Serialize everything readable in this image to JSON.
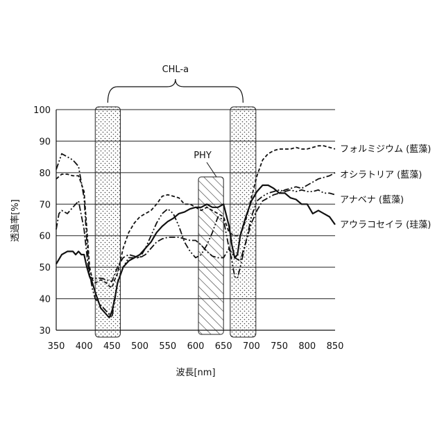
{
  "chart_data": {
    "type": "line",
    "title": "",
    "xlabel": "波長[nm]",
    "ylabel": "透過率[%]",
    "xlim": [
      350,
      850
    ],
    "ylim": [
      30,
      100
    ],
    "xticks": [
      350,
      400,
      450,
      500,
      550,
      600,
      650,
      700,
      750,
      800,
      850
    ],
    "yticks": [
      30,
      40,
      50,
      60,
      70,
      80,
      90,
      100
    ],
    "grid": "horizontal",
    "legend": "right",
    "annotations": {
      "chl_label": "CHL-a",
      "phy_label": "PHY",
      "chl_bands": [
        [
          420,
          465
        ],
        [
          662,
          708
        ]
      ],
      "phy_band": [
        605,
        650
      ]
    },
    "series": [
      {
        "name": "フォルミジウム (藍藻)",
        "style": "dashed",
        "x": [
          350,
          360,
          370,
          380,
          390,
          400,
          405,
          410,
          415,
          420,
          430,
          440,
          445,
          450,
          455,
          460,
          470,
          480,
          490,
          500,
          510,
          520,
          530,
          540,
          550,
          560,
          570,
          580,
          590,
          600,
          610,
          620,
          630,
          640,
          650,
          660,
          670,
          680,
          690,
          700,
          710,
          720,
          730,
          740,
          750,
          760,
          770,
          780,
          790,
          800,
          810,
          820,
          830,
          840,
          850
        ],
        "y": [
          78,
          79.5,
          79.5,
          79,
          79,
          74,
          62,
          50,
          46,
          45,
          46,
          45,
          44,
          43.5,
          46,
          48,
          56,
          61,
          64,
          66,
          67,
          68,
          70,
          72.5,
          73,
          72.5,
          72,
          70,
          70,
          69,
          68,
          69,
          68,
          67,
          66,
          61,
          60,
          60,
          65,
          72,
          79,
          84,
          86,
          87,
          87.5,
          87.5,
          87.5,
          88,
          87.5,
          87.5,
          88,
          88.5,
          88.5,
          88,
          87.5
        ]
      },
      {
        "name": "オシラトリア (藍藻)",
        "style": "dash-dot",
        "x": [
          350,
          355,
          360,
          370,
          380,
          390,
          400,
          405,
          410,
          415,
          420,
          430,
          440,
          450,
          460,
          470,
          480,
          490,
          500,
          510,
          520,
          530,
          540,
          550,
          560,
          570,
          580,
          590,
          600,
          610,
          620,
          630,
          640,
          650,
          660,
          670,
          680,
          690,
          700,
          710,
          720,
          730,
          740,
          750,
          760,
          770,
          780,
          790,
          800,
          810,
          820,
          830,
          840,
          850
        ],
        "y": [
          62,
          67,
          68,
          67,
          69,
          71,
          62,
          54,
          47,
          46.5,
          46.5,
          46.5,
          46,
          45.5,
          50,
          53,
          54,
          53.5,
          53,
          54,
          56,
          58,
          59,
          59.5,
          59.5,
          59.5,
          59,
          58.5,
          58.5,
          57,
          55,
          53.5,
          53,
          53,
          56,
          53,
          52,
          58,
          64,
          68,
          71,
          72,
          73,
          73.5,
          74.5,
          75,
          75.5,
          75,
          76,
          77,
          78,
          78.5,
          79,
          80
        ]
      },
      {
        "name": "アナベナ (藍藻)",
        "style": "dash-dot-dot",
        "x": [
          350,
          360,
          370,
          380,
          390,
          400,
          405,
          410,
          415,
          420,
          430,
          440,
          445,
          450,
          460,
          470,
          480,
          490,
          500,
          510,
          520,
          530,
          540,
          550,
          560,
          570,
          580,
          590,
          600,
          610,
          620,
          630,
          640,
          650,
          660,
          665,
          670,
          675,
          680,
          690,
          700,
          710,
          720,
          730,
          740,
          750,
          760,
          770,
          780,
          790,
          800,
          810,
          820,
          830,
          840,
          850
        ],
        "y": [
          81,
          86,
          85,
          84,
          82,
          72,
          58,
          48,
          43,
          40,
          38,
          36,
          35,
          34,
          45,
          50,
          53,
          53,
          53,
          56,
          60,
          64,
          67,
          68.5,
          67,
          63,
          58,
          55,
          53,
          54,
          57,
          61,
          66,
          65,
          56,
          52,
          47,
          46.5,
          50,
          58,
          66,
          71,
          72.5,
          73.5,
          74,
          74.5,
          74,
          74.5,
          74,
          74.5,
          74,
          74,
          74.5,
          73.5,
          73.5,
          73
        ]
      },
      {
        "name": "アウラコセイラ (珪藻)",
        "style": "solid",
        "x": [
          350,
          360,
          370,
          380,
          385,
          390,
          395,
          400,
          405,
          410,
          415,
          420,
          430,
          440,
          445,
          450,
          455,
          460,
          470,
          480,
          490,
          500,
          510,
          520,
          530,
          540,
          550,
          560,
          570,
          580,
          590,
          600,
          610,
          620,
          630,
          640,
          650,
          660,
          665,
          670,
          675,
          680,
          690,
          700,
          710,
          720,
          730,
          740,
          750,
          760,
          770,
          780,
          790,
          800,
          810,
          820,
          830,
          840,
          850
        ],
        "y": [
          51,
          54,
          55,
          55,
          54,
          55,
          54,
          54,
          50,
          47,
          45,
          42,
          37,
          35,
          34,
          36,
          40,
          45,
          50,
          52,
          53,
          54,
          56,
          58,
          61,
          63,
          64.5,
          65.5,
          67,
          67.5,
          68.5,
          69,
          69,
          70,
          69,
          69,
          70,
          63,
          57,
          53,
          54,
          60,
          66,
          71,
          74,
          76,
          76,
          75,
          73.5,
          73.5,
          72,
          71.5,
          70,
          70,
          67,
          68,
          67,
          66,
          63.5
        ]
      }
    ]
  }
}
